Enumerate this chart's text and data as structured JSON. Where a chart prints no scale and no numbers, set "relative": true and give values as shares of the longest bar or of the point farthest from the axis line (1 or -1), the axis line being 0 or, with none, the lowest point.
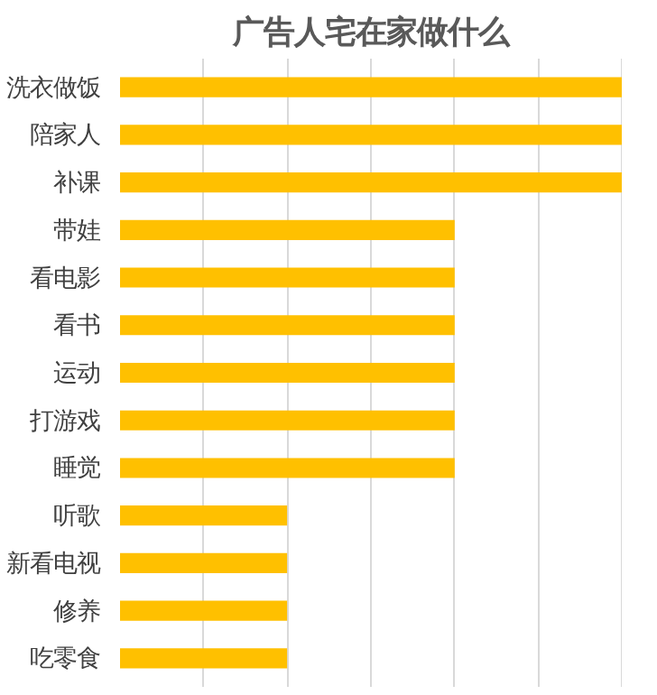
{
  "chart_data": {
    "type": "bar",
    "orientation": "horizontal",
    "relative": true,
    "title": "广告人宅在家做什么",
    "categories": [
      "洗衣做饭",
      "陪家人",
      "补课",
      "带娃",
      "看电影",
      "看书",
      "运动",
      "打游戏",
      "睡觉",
      "听歌",
      "新看电视",
      "修养",
      "吃零食"
    ],
    "values": [
      1,
      1,
      1,
      0.667,
      0.667,
      0.667,
      0.667,
      0.667,
      0.667,
      0.333,
      0.333,
      0.333,
      0.333
    ],
    "color": "#ffc000",
    "grid": "x"
  }
}
